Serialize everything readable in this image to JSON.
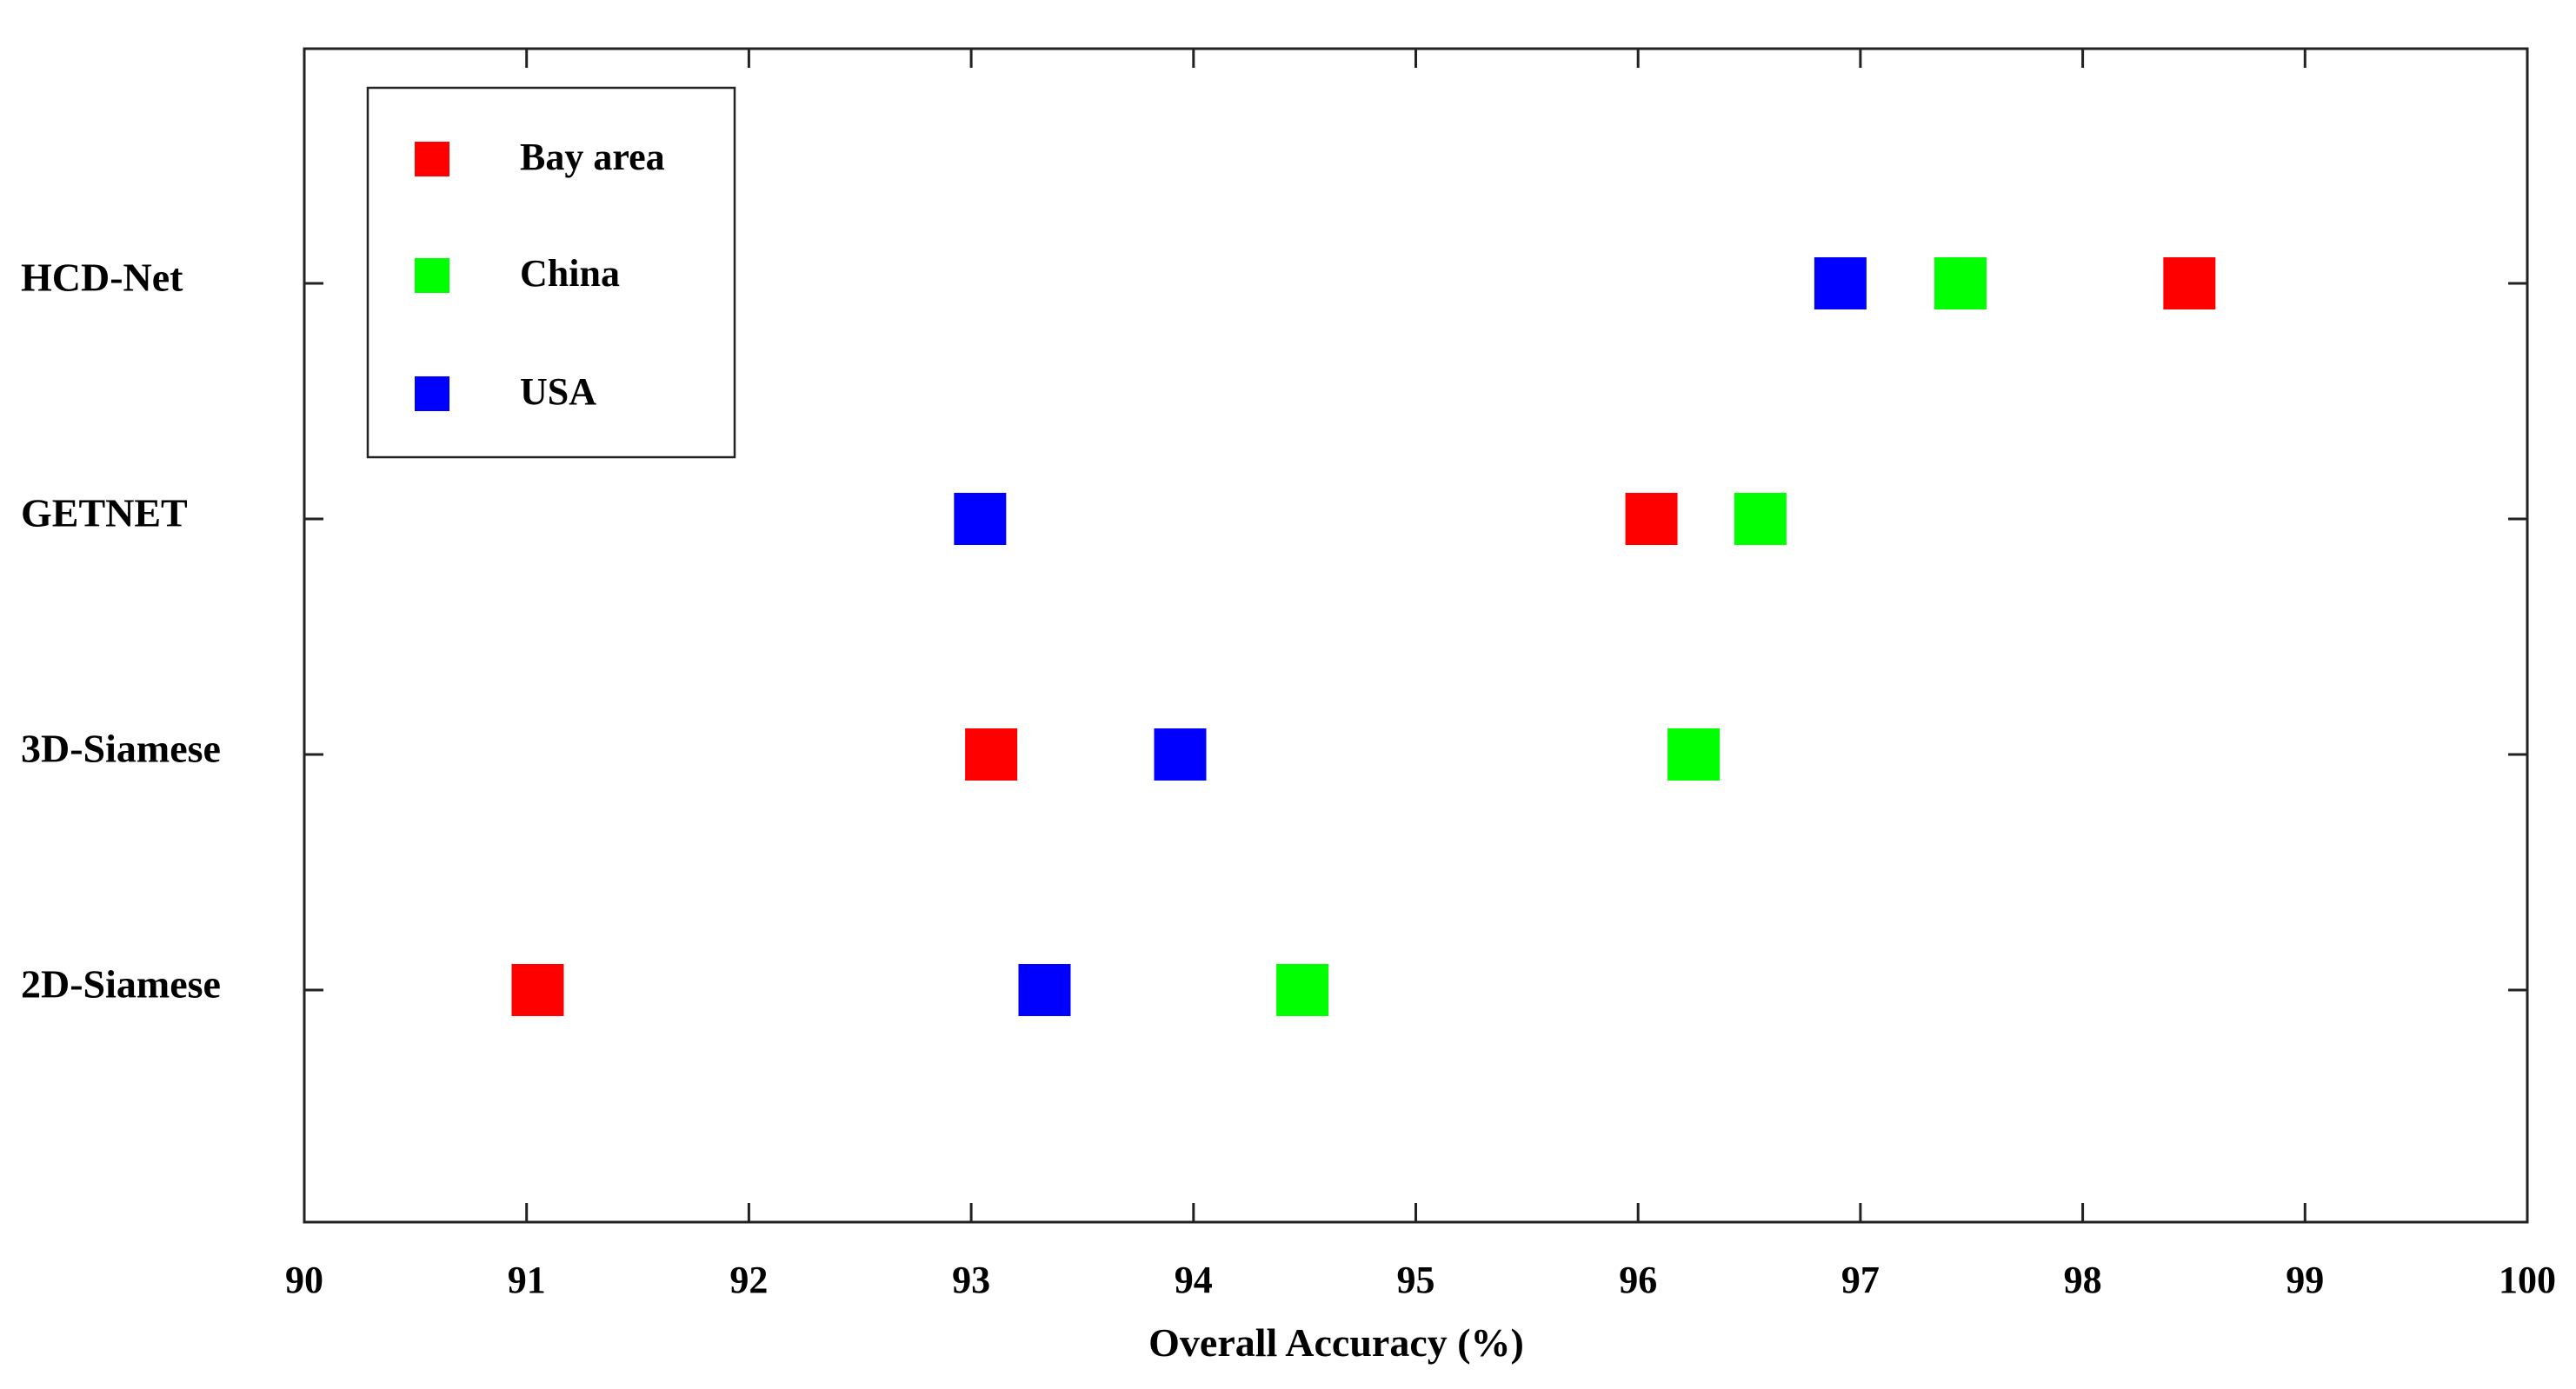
{
  "chart_data": {
    "type": "scatter",
    "xlabel": "Overall Accuracy (%)",
    "ylabel": "",
    "xlim": [
      90,
      100
    ],
    "xticks": [
      "90",
      "91",
      "92",
      "93",
      "94",
      "95",
      "96",
      "97",
      "98",
      "99",
      "100"
    ],
    "categories": [
      "HCD-Net",
      "GETNET",
      "3D-Siamese",
      "2D-Siamese"
    ],
    "series": [
      {
        "name": "Bay area",
        "color": "#ff0000",
        "values": [
          98.48,
          96.06,
          93.09,
          91.05
        ]
      },
      {
        "name": "China",
        "color": "#00ff00",
        "values": [
          97.45,
          96.55,
          96.25,
          94.49
        ]
      },
      {
        "name": "USA",
        "color": "#0000ff",
        "values": [
          96.91,
          93.04,
          93.94,
          93.33
        ]
      }
    ],
    "legend": {
      "position": "top-left",
      "marker": "square"
    },
    "grid": false
  }
}
